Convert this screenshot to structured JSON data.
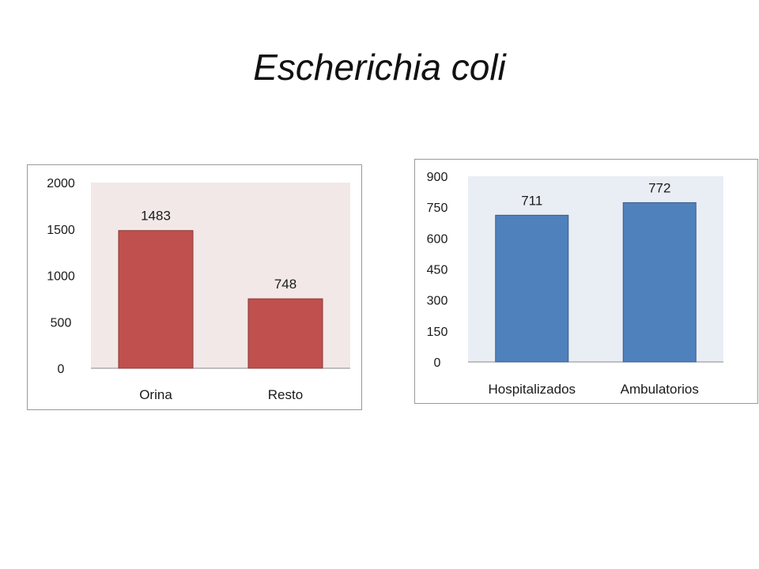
{
  "slide": {
    "title": "Escherichia coli"
  },
  "chart_data": [
    {
      "type": "bar",
      "categories": [
        "Orina",
        "Resto"
      ],
      "values": [
        1483,
        748
      ],
      "data_labels": [
        "1483",
        "748"
      ],
      "yticks": [
        0,
        500,
        1000,
        1500,
        2000
      ],
      "ylim": [
        0,
        2000
      ],
      "title": "",
      "xlabel": "",
      "ylabel": "",
      "grid": false,
      "bar_color": "#C0504D",
      "bar_edge_color": "#8C3836",
      "plot_bg_color": "#F2E8E8"
    },
    {
      "type": "bar",
      "categories": [
        "Hospitalizados",
        "Ambulatorios"
      ],
      "values": [
        711,
        772
      ],
      "data_labels": [
        "711",
        "772"
      ],
      "yticks": [
        0,
        150,
        300,
        450,
        600,
        750,
        900
      ],
      "ylim": [
        0,
        900
      ],
      "title": "",
      "xlabel": "",
      "ylabel": "",
      "grid": false,
      "bar_color": "#4F81BD",
      "bar_edge_color": "#385D8A",
      "plot_bg_color": "#E9EDF4"
    }
  ]
}
